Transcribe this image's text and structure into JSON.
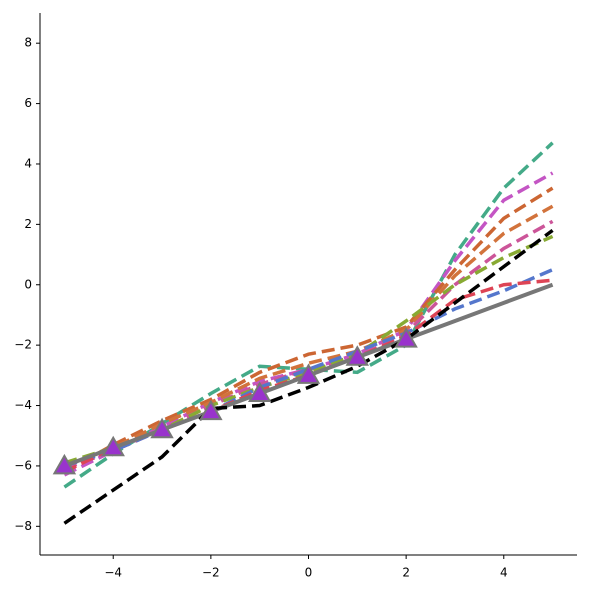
{
  "chart_data": {
    "type": "line",
    "x": [
      -5,
      -4,
      -3,
      -2,
      -1,
      0,
      1,
      2,
      3,
      4,
      5
    ],
    "xlim": [
      -5.5,
      5.5
    ],
    "ylim": [
      -8.95,
      9
    ],
    "xticks": [
      {
        "value": -4,
        "label": "−4"
      },
      {
        "value": -2,
        "label": "−2"
      },
      0,
      2,
      4
    ],
    "yticks": [
      {
        "value": -8,
        "label": "−8"
      },
      {
        "value": -6,
        "label": "−6"
      },
      {
        "value": -4,
        "label": "−4"
      },
      {
        "value": -2,
        "label": "−2"
      },
      0,
      2,
      4,
      6,
      8
    ],
    "series": [
      {
        "color": "#44aa88",
        "style": "dashed",
        "values": [
          -6.7,
          -5.6,
          -4.6,
          -3.6,
          -2.7,
          -2.8,
          -2.9,
          -2.0,
          1.0,
          3.2,
          4.7
        ]
      },
      {
        "color": "#c455c4",
        "style": "dashed",
        "values": [
          -6.3,
          -5.5,
          -4.7,
          -3.9,
          -3.2,
          -2.8,
          -2.3,
          -1.5,
          0.8,
          2.8,
          3.7
        ]
      },
      {
        "color": "#cc6633",
        "style": "dashed",
        "values": [
          -6.2,
          -5.3,
          -4.5,
          -3.8,
          -2.9,
          -2.3,
          -2.0,
          -1.4,
          0.5,
          2.2,
          3.2
        ]
      },
      {
        "color": "#d2733c",
        "style": "dashed",
        "values": [
          -6.0,
          -5.4,
          -4.6,
          -3.9,
          -3.1,
          -2.6,
          -2.2,
          -1.5,
          0.3,
          1.7,
          2.6
        ]
      },
      {
        "color": "#cc5599",
        "style": "dashed",
        "values": [
          -6.1,
          -5.5,
          -4.8,
          -4.0,
          -3.3,
          -2.8,
          -2.4,
          -1.6,
          0.0,
          1.2,
          2.1
        ]
      },
      {
        "color": "#88aa33",
        "style": "dashed",
        "values": [
          -5.9,
          -5.4,
          -4.8,
          -4.0,
          -3.4,
          -2.9,
          -2.3,
          -1.2,
          0.0,
          0.9,
          1.6
        ]
      },
      {
        "color": "#5577cc",
        "style": "dashed",
        "values": [
          -6.0,
          -5.5,
          -4.8,
          -4.2,
          -3.4,
          -2.8,
          -2.2,
          -1.6,
          -0.8,
          -0.2,
          0.5
        ]
      },
      {
        "color": "#dd4455",
        "style": "dashed",
        "values": [
          -6.2,
          -5.4,
          -4.8,
          -4.2,
          -3.5,
          -3.0,
          -2.4,
          -1.7,
          -0.5,
          0.0,
          0.15
        ]
      },
      {
        "color": "#777777",
        "style": "solid",
        "values": [
          -6.0,
          -5.4,
          -4.8,
          -4.2,
          -3.6,
          -3.0,
          -2.4,
          -1.8,
          -1.2,
          -0.6,
          0.0
        ]
      },
      {
        "color": "#000000",
        "style": "dashed",
        "values": [
          -7.9,
          -6.8,
          -5.7,
          -4.1,
          -4.0,
          -3.4,
          -2.7,
          -1.8,
          -0.6,
          0.6,
          1.8
        ]
      },
      {
        "color": "#9933cc",
        "style": "triangle",
        "values": [
          -6.0,
          -5.4,
          -4.8,
          -4.2,
          -3.6,
          -3.0,
          -2.4,
          -1.8,
          null,
          null,
          null
        ]
      }
    ]
  }
}
